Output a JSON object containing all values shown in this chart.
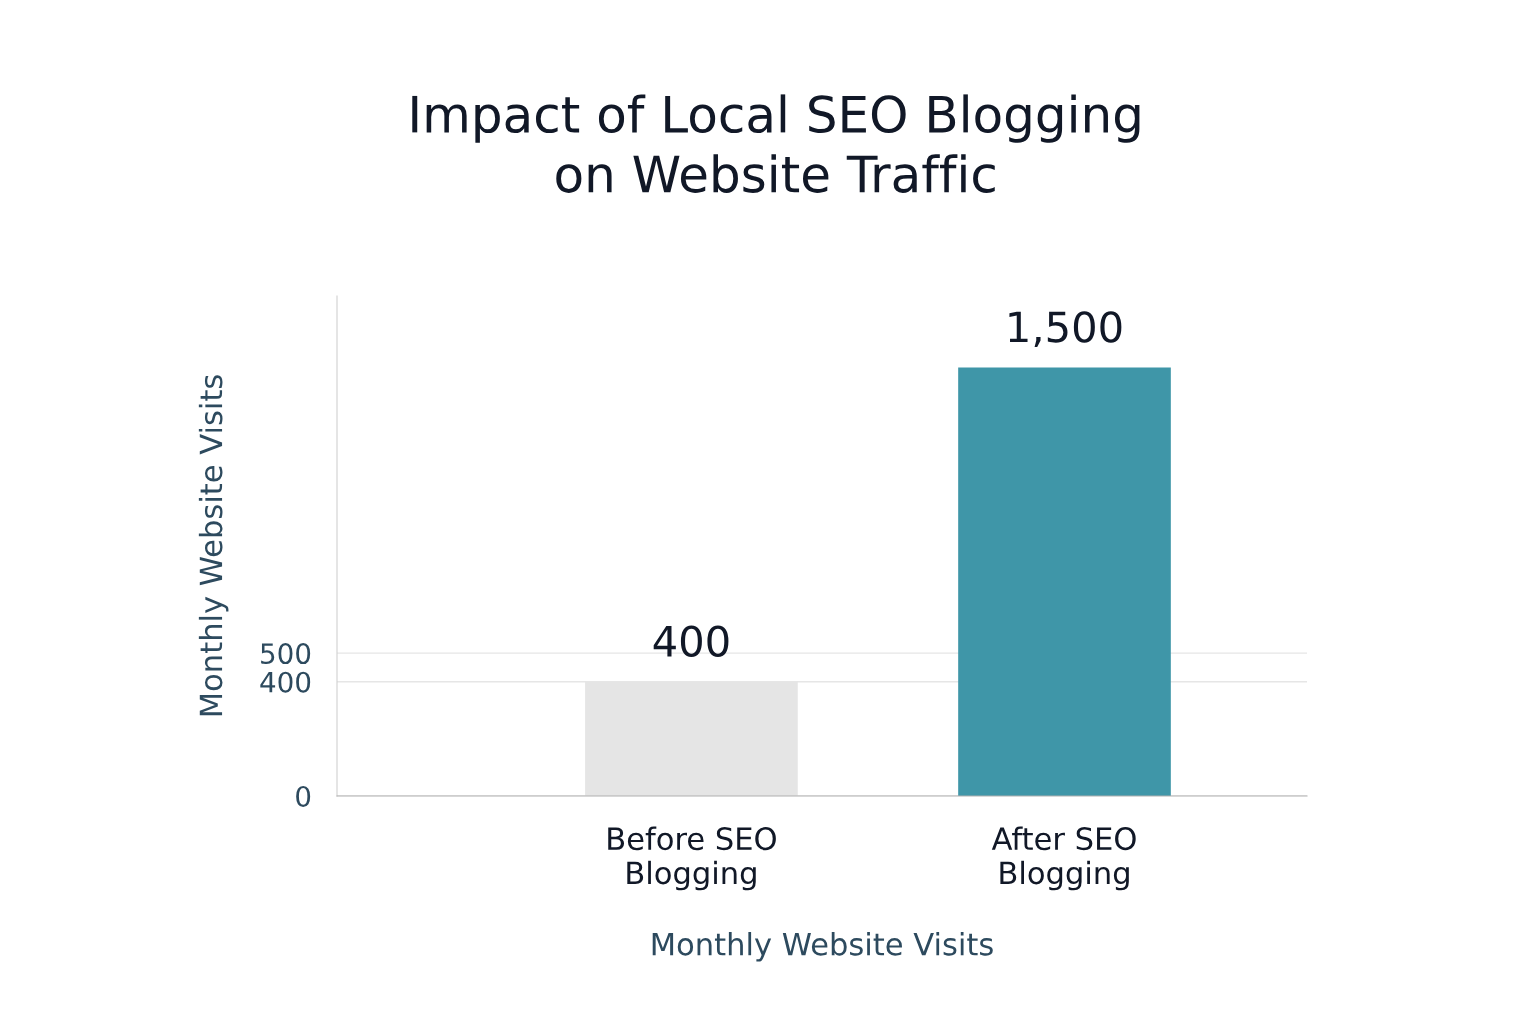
{
  "chart_data": {
    "type": "bar",
    "title": "Impact of Local SEO Blogging on Website Traffic",
    "categories": [
      "Before SEO Blogging",
      "After SEO Blogging"
    ],
    "values": [
      400,
      1500
    ],
    "colors": [
      "#e5e5e5",
      "#3f96a8"
    ],
    "value_labels": [
      "400",
      "1,500"
    ],
    "ylabel": "Monthly Website Visits",
    "xlabel": "Monthly Website Visits",
    "ylim": [
      0,
      1750
    ],
    "yticks": [
      0,
      400,
      500
    ],
    "grid": "y",
    "legend": false
  }
}
